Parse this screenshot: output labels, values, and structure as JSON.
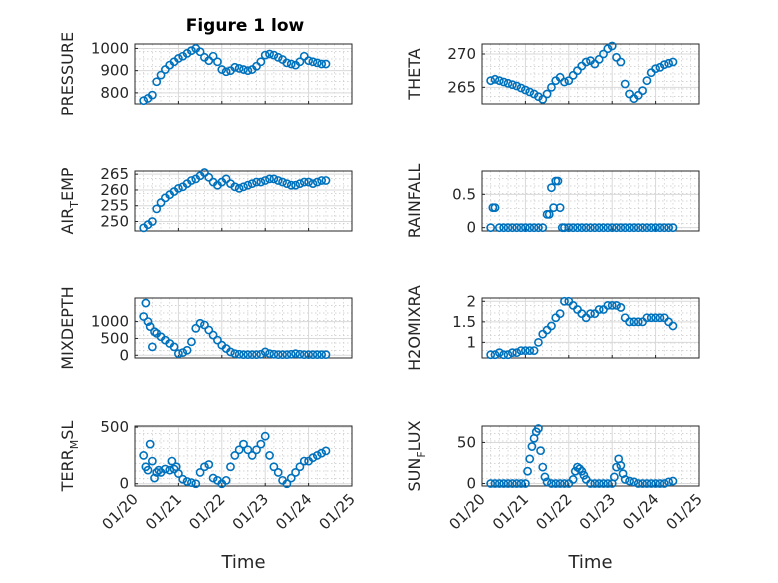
{
  "figure": {
    "title": "Figure 1 low"
  },
  "chart_data": [
    {
      "type": "scatter",
      "ylabel": "PRESSURE",
      "ylim": [
        750,
        1020
      ],
      "yticks": [
        800,
        900,
        1000
      ],
      "ytick_labels": [
        "800",
        "900",
        "1000"
      ],
      "show_xticklabels": false,
      "grid": true,
      "x": [
        20.2,
        20.3,
        20.4,
        20.5,
        20.6,
        20.7,
        20.8,
        20.9,
        21.0,
        21.1,
        21.2,
        21.3,
        21.4,
        21.5,
        21.6,
        21.7,
        21.8,
        21.9,
        22.0,
        22.1,
        22.2,
        22.3,
        22.4,
        22.5,
        22.6,
        22.7,
        22.8,
        22.9,
        23.0,
        23.1,
        23.2,
        23.3,
        23.4,
        23.5,
        23.6,
        23.7,
        23.8,
        23.9,
        24.0,
        24.1,
        24.2,
        24.3,
        24.4
      ],
      "y": [
        765,
        775,
        790,
        850,
        880,
        905,
        925,
        940,
        955,
        965,
        978,
        990,
        1000,
        985,
        960,
        945,
        965,
        940,
        905,
        895,
        900,
        915,
        910,
        905,
        900,
        905,
        920,
        940,
        970,
        975,
        970,
        960,
        950,
        935,
        930,
        925,
        940,
        965,
        945,
        940,
        935,
        930,
        930
      ]
    },
    {
      "type": "scatter",
      "ylabel": "THETA",
      "ylim": [
        262.5,
        271.5
      ],
      "yticks": [
        265,
        270
      ],
      "ytick_labels": [
        "265",
        "270"
      ],
      "show_xticklabels": false,
      "grid": true,
      "x": [
        20.2,
        20.3,
        20.4,
        20.5,
        20.6,
        20.7,
        20.8,
        20.9,
        21.0,
        21.1,
        21.2,
        21.3,
        21.4,
        21.5,
        21.6,
        21.7,
        21.8,
        21.9,
        22.0,
        22.1,
        22.2,
        22.3,
        22.4,
        22.5,
        22.6,
        22.7,
        22.8,
        22.9,
        23.0,
        23.1,
        23.2,
        23.3,
        23.4,
        23.5,
        23.6,
        23.7,
        23.8,
        23.9,
        24.0,
        24.1,
        24.2,
        24.3,
        24.4
      ],
      "y": [
        266.0,
        266.2,
        266.0,
        265.8,
        265.6,
        265.4,
        265.2,
        264.9,
        264.6,
        264.3,
        264.0,
        263.6,
        263.2,
        264.0,
        265.0,
        266.0,
        266.5,
        265.8,
        266.0,
        266.8,
        267.5,
        268.2,
        268.8,
        269.0,
        268.5,
        269.2,
        270.0,
        270.8,
        271.2,
        269.5,
        268.8,
        265.5,
        264.0,
        263.3,
        263.8,
        264.5,
        266.0,
        267.2,
        267.8,
        268.0,
        268.4,
        268.6,
        268.8
      ]
    },
    {
      "type": "scatter",
      "ylabel": "AIR",
      "ylabel_sub": "T",
      "ylabel_tail": "EMP",
      "ylim": [
        247,
        266
      ],
      "yticks": [
        250,
        255,
        260,
        265
      ],
      "ytick_labels": [
        "250",
        "255",
        "260",
        "265"
      ],
      "show_xticklabels": false,
      "grid": true,
      "x": [
        20.2,
        20.3,
        20.4,
        20.5,
        20.6,
        20.7,
        20.8,
        20.9,
        21.0,
        21.1,
        21.2,
        21.3,
        21.4,
        21.5,
        21.6,
        21.7,
        21.8,
        21.9,
        22.0,
        22.1,
        22.2,
        22.3,
        22.4,
        22.5,
        22.6,
        22.7,
        22.8,
        22.9,
        23.0,
        23.1,
        23.2,
        23.3,
        23.4,
        23.5,
        23.6,
        23.7,
        23.8,
        23.9,
        24.0,
        24.1,
        24.2,
        24.3,
        24.4
      ],
      "y": [
        248.0,
        249.0,
        250.0,
        254.0,
        256.0,
        257.5,
        258.5,
        259.5,
        260.5,
        261.0,
        262.0,
        263.0,
        263.5,
        264.5,
        265.5,
        264.0,
        262.5,
        261.5,
        262.5,
        263.5,
        262.0,
        261.0,
        260.5,
        261.0,
        261.5,
        262.0,
        262.5,
        262.5,
        263.0,
        263.5,
        263.5,
        263.0,
        262.5,
        262.0,
        261.5,
        261.5,
        262.0,
        262.5,
        262.5,
        262.0,
        262.5,
        263.0,
        263.0
      ]
    },
    {
      "type": "scatter",
      "ylabel": "RAINFALL",
      "ylim": [
        -0.05,
        0.85
      ],
      "yticks": [
        0,
        0.5
      ],
      "ytick_labels": [
        "0",
        "0.5"
      ],
      "show_xticklabels": false,
      "grid": true,
      "x": [
        20.2,
        20.25,
        20.3,
        20.4,
        20.5,
        20.6,
        20.7,
        20.8,
        20.9,
        21.0,
        21.1,
        21.2,
        21.3,
        21.4,
        21.5,
        21.55,
        21.6,
        21.65,
        21.7,
        21.75,
        21.8,
        21.85,
        21.9,
        22.0,
        22.1,
        22.2,
        22.3,
        22.4,
        22.5,
        22.6,
        22.7,
        22.8,
        22.9,
        23.0,
        23.1,
        23.2,
        23.3,
        23.4,
        23.5,
        23.6,
        23.7,
        23.8,
        23.9,
        24.0,
        24.1,
        24.2,
        24.3,
        24.4
      ],
      "y": [
        0,
        0.3,
        0.3,
        0,
        0,
        0,
        0,
        0,
        0,
        0,
        0,
        0,
        0,
        0,
        0.2,
        0.2,
        0.6,
        0.3,
        0.7,
        0.7,
        0.3,
        0,
        0,
        0,
        0,
        0,
        0,
        0,
        0,
        0,
        0,
        0,
        0,
        0,
        0,
        0,
        0,
        0,
        0,
        0,
        0,
        0,
        0,
        0,
        0,
        0,
        0,
        0
      ]
    },
    {
      "type": "scatter",
      "ylabel": "MIXDEPTH",
      "ylim": [
        -80,
        1700
      ],
      "yticks": [
        0,
        500,
        1000
      ],
      "ytick_labels": [
        "0",
        "500",
        "1000"
      ],
      "show_xticklabels": false,
      "grid": true,
      "x": [
        20.2,
        20.25,
        20.3,
        20.35,
        20.4,
        20.45,
        20.5,
        20.6,
        20.7,
        20.8,
        20.9,
        21.0,
        21.1,
        21.2,
        21.3,
        21.4,
        21.5,
        21.6,
        21.7,
        21.8,
        21.9,
        22.0,
        22.1,
        22.2,
        22.3,
        22.4,
        22.5,
        22.6,
        22.7,
        22.8,
        22.9,
        23.0,
        23.1,
        23.2,
        23.3,
        23.4,
        23.5,
        23.6,
        23.7,
        23.8,
        23.9,
        24.0,
        24.1,
        24.2,
        24.3,
        24.4
      ],
      "y": [
        1150,
        1550,
        1000,
        850,
        250,
        700,
        650,
        550,
        450,
        350,
        250,
        50,
        80,
        150,
        400,
        800,
        950,
        900,
        750,
        600,
        450,
        300,
        200,
        100,
        50,
        30,
        20,
        20,
        20,
        20,
        30,
        100,
        50,
        30,
        20,
        20,
        20,
        30,
        50,
        30,
        20,
        20,
        20,
        20,
        20,
        20
      ]
    },
    {
      "type": "scatter",
      "ylabel": "H2OMIXRA",
      "ylim": [
        0.62,
        2.08
      ],
      "yticks": [
        1,
        1.5,
        2
      ],
      "ytick_labels": [
        "1",
        "1.5",
        "2"
      ],
      "show_xticklabels": false,
      "grid": true,
      "x": [
        20.2,
        20.3,
        20.4,
        20.5,
        20.6,
        20.7,
        20.8,
        20.9,
        21.0,
        21.1,
        21.2,
        21.3,
        21.4,
        21.5,
        21.6,
        21.7,
        21.8,
        21.9,
        22.0,
        22.1,
        22.2,
        22.3,
        22.4,
        22.5,
        22.6,
        22.7,
        22.8,
        22.9,
        23.0,
        23.1,
        23.2,
        23.3,
        23.4,
        23.5,
        23.6,
        23.7,
        23.8,
        23.9,
        24.0,
        24.1,
        24.2,
        24.3,
        24.4
      ],
      "y": [
        0.7,
        0.7,
        0.75,
        0.7,
        0.7,
        0.75,
        0.75,
        0.8,
        0.8,
        0.8,
        0.8,
        1.0,
        1.2,
        1.3,
        1.4,
        1.6,
        1.7,
        2.0,
        2.0,
        1.9,
        1.8,
        1.7,
        1.6,
        1.7,
        1.7,
        1.8,
        1.8,
        1.9,
        1.9,
        1.9,
        1.85,
        1.6,
        1.5,
        1.5,
        1.5,
        1.5,
        1.6,
        1.6,
        1.6,
        1.6,
        1.6,
        1.5,
        1.4
      ]
    },
    {
      "type": "scatter",
      "ylabel": "TERR",
      "ylabel_sub": "M",
      "ylabel_tail": "SL",
      "ylim": [
        -20,
        510
      ],
      "yticks": [
        0,
        500
      ],
      "ytick_labels": [
        "0",
        "500"
      ],
      "xlabel": "Time",
      "xlim": [
        20,
        25
      ],
      "xticks": [
        20,
        21,
        22,
        23,
        24,
        25
      ],
      "xtick_labels": [
        "01/20",
        "01/21",
        "01/22",
        "01/23",
        "01/24",
        "01/25"
      ],
      "show_xticklabels": true,
      "grid": true,
      "x": [
        20.2,
        20.25,
        20.3,
        20.35,
        20.4,
        20.45,
        20.5,
        20.55,
        20.6,
        20.7,
        20.8,
        20.85,
        20.9,
        20.95,
        21.0,
        21.1,
        21.2,
        21.3,
        21.4,
        21.5,
        21.6,
        21.7,
        21.8,
        21.9,
        22.0,
        22.1,
        22.2,
        22.3,
        22.4,
        22.5,
        22.6,
        22.7,
        22.8,
        22.9,
        23.0,
        23.1,
        23.2,
        23.3,
        23.4,
        23.5,
        23.6,
        23.7,
        23.8,
        23.9,
        24.0,
        24.1,
        24.2,
        24.3,
        24.4
      ],
      "y": [
        250,
        150,
        120,
        350,
        200,
        50,
        100,
        120,
        100,
        130,
        120,
        200,
        130,
        150,
        90,
        40,
        20,
        10,
        0,
        100,
        150,
        170,
        50,
        30,
        0,
        30,
        150,
        250,
        300,
        350,
        300,
        250,
        300,
        350,
        420,
        250,
        150,
        100,
        30,
        0,
        50,
        100,
        150,
        200,
        200,
        230,
        250,
        270,
        290
      ]
    },
    {
      "type": "scatter",
      "ylabel": "SUN",
      "ylabel_sub": "F",
      "ylabel_tail": "LUX",
      "ylim": [
        -3,
        70
      ],
      "yticks": [
        0,
        50
      ],
      "ytick_labels": [
        "0",
        "50"
      ],
      "xlabel": "Time",
      "xlim": [
        20,
        25
      ],
      "xticks": [
        20,
        21,
        22,
        23,
        24,
        25
      ],
      "xtick_labels": [
        "01/20",
        "01/21",
        "01/22",
        "01/23",
        "01/24",
        "01/25"
      ],
      "show_xticklabels": true,
      "grid": true,
      "x": [
        20.2,
        20.3,
        20.4,
        20.5,
        20.6,
        20.7,
        20.8,
        20.9,
        21.0,
        21.05,
        21.1,
        21.15,
        21.2,
        21.25,
        21.3,
        21.35,
        21.4,
        21.45,
        21.5,
        21.6,
        21.7,
        21.8,
        21.9,
        22.0,
        22.1,
        22.15,
        22.2,
        22.25,
        22.3,
        22.35,
        22.4,
        22.5,
        22.6,
        22.7,
        22.8,
        22.9,
        23.0,
        23.05,
        23.1,
        23.15,
        23.2,
        23.25,
        23.3,
        23.4,
        23.5,
        23.6,
        23.7,
        23.8,
        23.9,
        24.0,
        24.1,
        24.2,
        24.3,
        24.4
      ],
      "y": [
        0,
        0,
        0,
        0,
        0,
        0,
        0,
        0,
        0,
        15,
        30,
        45,
        55,
        63,
        67,
        40,
        20,
        8,
        2,
        0,
        0,
        0,
        0,
        0,
        5,
        15,
        20,
        18,
        15,
        10,
        5,
        0,
        0,
        0,
        0,
        0,
        0,
        8,
        20,
        30,
        22,
        12,
        5,
        3,
        2,
        0,
        0,
        0,
        0,
        0,
        0,
        0,
        2,
        3
      ]
    }
  ],
  "style": {
    "marker_color": "#0072BD"
  }
}
